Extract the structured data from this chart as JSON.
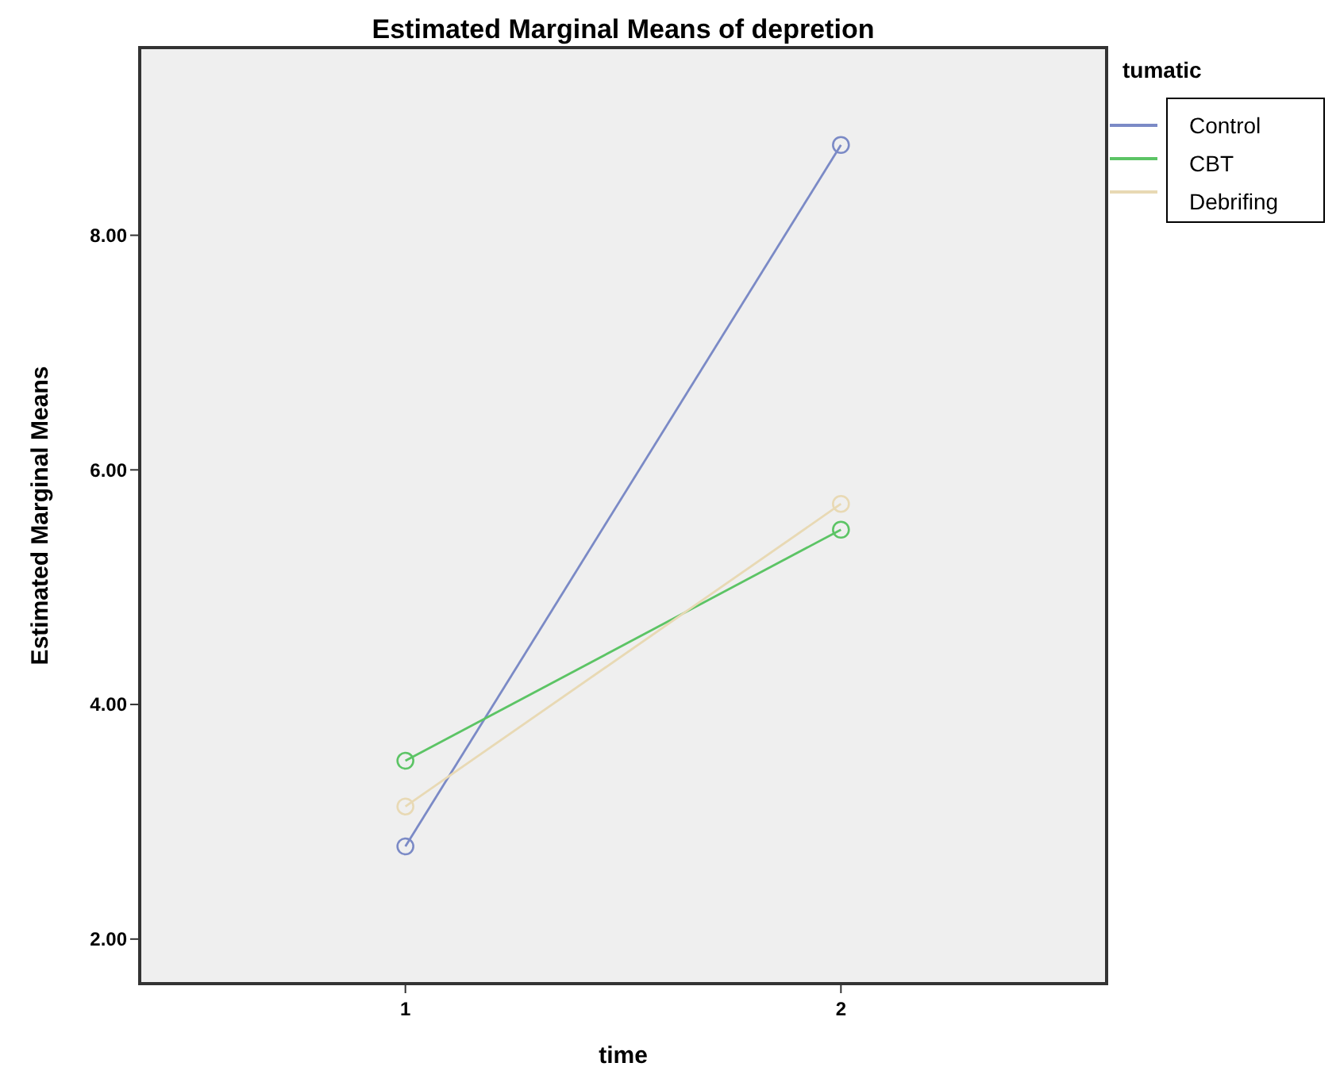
{
  "chart_data": {
    "type": "line",
    "title": "Estimated Marginal Means of depretion",
    "xlabel": "time",
    "ylabel": "Estimated Marginal Means",
    "legend_title": "tumatic",
    "x": [
      1,
      2
    ],
    "xlim": [
      0.39,
      2.61
    ],
    "xticks": [
      1,
      2
    ],
    "series": [
      {
        "name": "Control",
        "color": "#7b8ac6",
        "values": [
          2.79,
          8.77
        ]
      },
      {
        "name": "CBT",
        "color": "#5cc465",
        "values": [
          3.52,
          5.49
        ]
      },
      {
        "name": "Debrifing",
        "color": "#e8d9b4",
        "values": [
          3.13,
          5.71
        ]
      }
    ],
    "ylim": [
      1.62,
      9.6
    ],
    "yticks": [
      {
        "value": 2,
        "label": "2.00"
      },
      {
        "value": 4,
        "label": "4.00"
      },
      {
        "value": 6,
        "label": "6.00"
      },
      {
        "value": 8,
        "label": "8.00"
      }
    ],
    "marker": "circle",
    "line_style": "solid",
    "legend": "top right",
    "grid": false
  }
}
